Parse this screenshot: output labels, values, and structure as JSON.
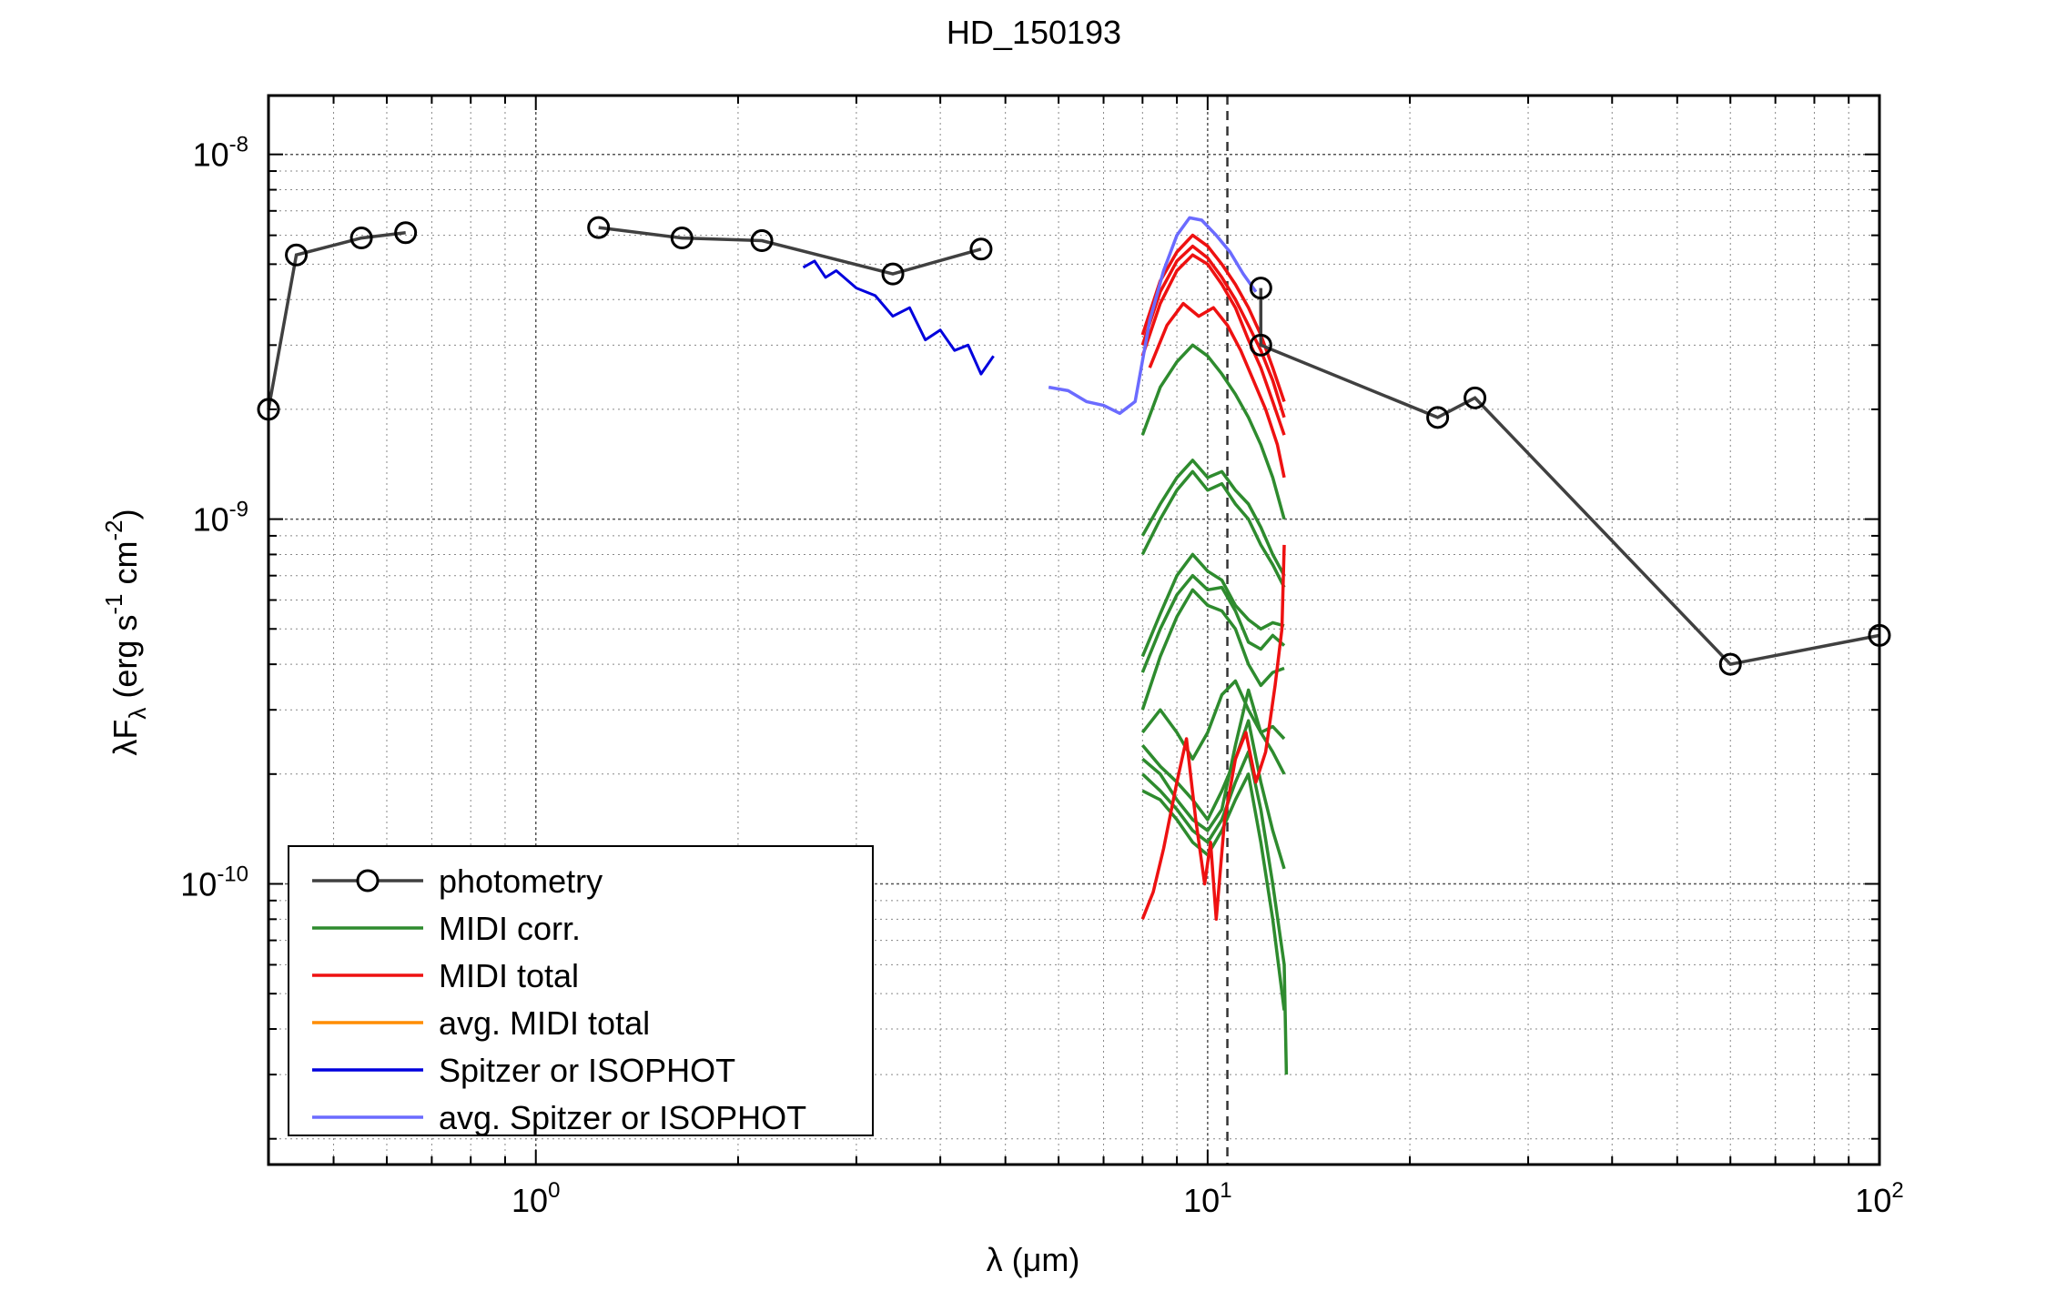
{
  "chart_data": {
    "type": "line",
    "title": "HD_150193",
    "xlabel": {
      "prefix": "λ (",
      "mu": "μ",
      "suffix": "m)"
    },
    "ylabel": {
      "base": "λF",
      "sub": "λ",
      "mid": " (erg s",
      "sup1": "-1",
      "mid2": " cm",
      "sup2": "-2",
      "end": ")"
    },
    "x_scale": "log",
    "y_scale": "log",
    "xlim": [
      0.4,
      100
    ],
    "ylim": [
      1.7e-11,
      1.45e-08
    ],
    "x_major_ticks": [
      {
        "base": "10",
        "exp": "0",
        "value": 1
      },
      {
        "base": "10",
        "exp": "1",
        "value": 10
      },
      {
        "base": "10",
        "exp": "2",
        "value": 100
      }
    ],
    "y_major_ticks": [
      {
        "base": "10",
        "exp": "-10",
        "value": 1e-10
      },
      {
        "base": "10",
        "exp": "-9",
        "value": 1e-09
      },
      {
        "base": "10",
        "exp": "-8",
        "value": 1e-08
      }
    ],
    "grid": true,
    "vertical_reference_line": 10.7,
    "legend_position": "bottom-left",
    "colors": {
      "photometry": "#404040",
      "midi_corr": "#2e8b2e",
      "midi_total": "#ee1111",
      "avg_midi_total": "#ff8c00",
      "spitzer": "#0000dd",
      "avg_spitzer": "#6b6bff"
    },
    "legend": [
      {
        "key": "photometry",
        "label": "photometry",
        "marker": true
      },
      {
        "key": "midi_corr",
        "label": "MIDI corr."
      },
      {
        "key": "midi_total",
        "label": "MIDI total"
      },
      {
        "key": "avg_midi_total",
        "label": "avg. MIDI total"
      },
      {
        "key": "spitzer",
        "label": "Spitzer or ISOPHOT"
      },
      {
        "key": "avg_spitzer",
        "label": "avg. Spitzer or ISOPHOT"
      }
    ],
    "photometry_segments": [
      [
        [
          0.4,
          2e-09
        ],
        [
          0.44,
          5.3e-09
        ],
        [
          0.55,
          5.9e-09
        ],
        [
          0.64,
          6.1e-09
        ]
      ],
      [
        [
          1.24,
          6.3e-09
        ],
        [
          1.65,
          5.9e-09
        ],
        [
          2.17,
          5.8e-09
        ],
        [
          3.4,
          4.7e-09
        ],
        [
          4.6,
          5.5e-09
        ]
      ],
      [
        [
          12,
          4.3e-09
        ],
        [
          12,
          3e-09
        ],
        [
          22,
          1.9e-09
        ],
        [
          25,
          2.15e-09
        ],
        [
          60,
          4e-10
        ],
        [
          100,
          4.8e-10
        ]
      ]
    ],
    "spitzer": [
      [
        2.5,
        4.9e-09
      ],
      [
        2.6,
        5.1e-09
      ],
      [
        2.7,
        4.6e-09
      ],
      [
        2.8,
        4.8e-09
      ],
      [
        3.0,
        4.3e-09
      ],
      [
        3.2,
        4.1e-09
      ],
      [
        3.4,
        3.6e-09
      ],
      [
        3.6,
        3.8e-09
      ],
      [
        3.8,
        3.1e-09
      ],
      [
        4.0,
        3.3e-09
      ],
      [
        4.2,
        2.9e-09
      ],
      [
        4.4,
        3e-09
      ],
      [
        4.6,
        2.5e-09
      ],
      [
        4.8,
        2.8e-09
      ]
    ],
    "avg_spitzer": [
      [
        5.8,
        2.3e-09
      ],
      [
        6.2,
        2.25e-09
      ],
      [
        6.6,
        2.1e-09
      ],
      [
        7.0,
        2.05e-09
      ],
      [
        7.4,
        1.95e-09
      ],
      [
        7.8,
        2.1e-09
      ],
      [
        8.2,
        3.5e-09
      ],
      [
        8.6,
        4.8e-09
      ],
      [
        9.0,
        6e-09
      ],
      [
        9.4,
        6.7e-09
      ],
      [
        9.8,
        6.6e-09
      ],
      [
        10.3,
        6e-09
      ],
      [
        10.8,
        5.4e-09
      ],
      [
        11.3,
        4.7e-09
      ],
      [
        11.8,
        4.2e-09
      ]
    ],
    "midi_total": [
      [
        [
          8.0,
          3.2e-09
        ],
        [
          8.5,
          4.5e-09
        ],
        [
          9.0,
          5.4e-09
        ],
        [
          9.5,
          6e-09
        ],
        [
          10.0,
          5.6e-09
        ],
        [
          10.5,
          5e-09
        ],
        [
          11.0,
          4.4e-09
        ],
        [
          11.5,
          3.8e-09
        ],
        [
          12.0,
          3.2e-09
        ],
        [
          12.5,
          2.6e-09
        ],
        [
          13.0,
          2.1e-09
        ]
      ],
      [
        [
          8.0,
          3e-09
        ],
        [
          8.5,
          4.2e-09
        ],
        [
          9.0,
          5.1e-09
        ],
        [
          9.5,
          5.6e-09
        ],
        [
          10.0,
          5.2e-09
        ],
        [
          10.5,
          4.6e-09
        ],
        [
          11.0,
          4e-09
        ],
        [
          11.5,
          3.4e-09
        ],
        [
          12.0,
          2.9e-09
        ],
        [
          12.5,
          2.4e-09
        ],
        [
          13.0,
          1.9e-09
        ]
      ],
      [
        [
          8.0,
          2.8e-09
        ],
        [
          8.5,
          3.9e-09
        ],
        [
          9.0,
          4.8e-09
        ],
        [
          9.5,
          5.3e-09
        ],
        [
          10.0,
          5e-09
        ],
        [
          10.5,
          4.4e-09
        ],
        [
          11.0,
          3.8e-09
        ],
        [
          11.5,
          3.1e-09
        ],
        [
          12.0,
          2.6e-09
        ],
        [
          12.5,
          2.1e-09
        ],
        [
          13.0,
          1.7e-09
        ]
      ],
      [
        [
          8.2,
          2.6e-09
        ],
        [
          8.7,
          3.4e-09
        ],
        [
          9.2,
          3.9e-09
        ],
        [
          9.7,
          3.6e-09
        ],
        [
          10.2,
          3.8e-09
        ],
        [
          10.7,
          3.4e-09
        ],
        [
          11.2,
          2.9e-09
        ],
        [
          11.7,
          2.4e-09
        ],
        [
          12.2,
          2e-09
        ],
        [
          12.7,
          1.6e-09
        ],
        [
          13.0,
          1.3e-09
        ]
      ],
      [
        [
          8.0,
          8e-11
        ],
        [
          8.3,
          9.5e-11
        ],
        [
          8.6,
          1.25e-10
        ],
        [
          9.0,
          1.9e-10
        ],
        [
          9.3,
          2.5e-10
        ],
        [
          9.6,
          1.5e-10
        ],
        [
          9.9,
          1e-10
        ],
        [
          10.1,
          1.3e-10
        ],
        [
          10.3,
          8e-11
        ],
        [
          10.6,
          1.5e-10
        ],
        [
          11.0,
          2.2e-10
        ],
        [
          11.4,
          2.6e-10
        ],
        [
          11.8,
          1.9e-10
        ],
        [
          12.2,
          2.3e-10
        ],
        [
          12.6,
          3.5e-10
        ],
        [
          12.9,
          5e-10
        ],
        [
          13.0,
          8.5e-10
        ]
      ]
    ],
    "midi_corr": [
      [
        [
          8.0,
          1.7e-09
        ],
        [
          8.5,
          2.3e-09
        ],
        [
          9.0,
          2.7e-09
        ],
        [
          9.5,
          3e-09
        ],
        [
          10.0,
          2.8e-09
        ],
        [
          10.5,
          2.5e-09
        ],
        [
          11.0,
          2.2e-09
        ],
        [
          11.5,
          1.9e-09
        ],
        [
          12.0,
          1.6e-09
        ],
        [
          12.5,
          1.3e-09
        ],
        [
          13.0,
          1e-09
        ]
      ],
      [
        [
          8.0,
          9e-10
        ],
        [
          8.5,
          1.1e-09
        ],
        [
          9.0,
          1.3e-09
        ],
        [
          9.5,
          1.45e-09
        ],
        [
          10.0,
          1.3e-09
        ],
        [
          10.5,
          1.35e-09
        ],
        [
          11.0,
          1.2e-09
        ],
        [
          11.5,
          1.1e-09
        ],
        [
          12.0,
          9.5e-10
        ],
        [
          12.5,
          8e-10
        ],
        [
          13.0,
          7e-10
        ]
      ],
      [
        [
          8.0,
          8e-10
        ],
        [
          8.5,
          1e-09
        ],
        [
          9.0,
          1.2e-09
        ],
        [
          9.5,
          1.35e-09
        ],
        [
          10.0,
          1.2e-09
        ],
        [
          10.5,
          1.25e-09
        ],
        [
          11.0,
          1.1e-09
        ],
        [
          11.5,
          1e-09
        ],
        [
          12.0,
          8.5e-10
        ],
        [
          12.5,
          7.5e-10
        ],
        [
          13.0,
          6.5e-10
        ]
      ],
      [
        [
          8.0,
          4.2e-10
        ],
        [
          8.5,
          5.5e-10
        ],
        [
          9.0,
          7e-10
        ],
        [
          9.5,
          8e-10
        ],
        [
          10.0,
          7.2e-10
        ],
        [
          10.5,
          6.8e-10
        ],
        [
          11.0,
          5.8e-10
        ],
        [
          11.5,
          5.3e-10
        ],
        [
          12.0,
          5e-10
        ],
        [
          12.5,
          5.2e-10
        ],
        [
          13.0,
          5.1e-10
        ]
      ],
      [
        [
          8.0,
          3.8e-10
        ],
        [
          8.5,
          5e-10
        ],
        [
          9.0,
          6.2e-10
        ],
        [
          9.5,
          7e-10
        ],
        [
          10.0,
          6.4e-10
        ],
        [
          10.5,
          6.5e-10
        ],
        [
          11.0,
          5.6e-10
        ],
        [
          11.5,
          4.6e-10
        ],
        [
          12.0,
          4.4e-10
        ],
        [
          12.5,
          4.8e-10
        ],
        [
          13.0,
          4.5e-10
        ]
      ],
      [
        [
          8.0,
          3e-10
        ],
        [
          8.5,
          4.2e-10
        ],
        [
          9.0,
          5.4e-10
        ],
        [
          9.5,
          6.4e-10
        ],
        [
          10.0,
          5.8e-10
        ],
        [
          10.5,
          5.6e-10
        ],
        [
          11.0,
          5e-10
        ],
        [
          11.5,
          4e-10
        ],
        [
          12.0,
          3.5e-10
        ],
        [
          12.5,
          3.8e-10
        ],
        [
          13.0,
          3.9e-10
        ]
      ],
      [
        [
          8.0,
          2.6e-10
        ],
        [
          8.5,
          3e-10
        ],
        [
          9.0,
          2.6e-10
        ],
        [
          9.5,
          2.2e-10
        ],
        [
          10.0,
          2.6e-10
        ],
        [
          10.5,
          3.3e-10
        ],
        [
          11.0,
          3.6e-10
        ],
        [
          11.5,
          3e-10
        ],
        [
          12.0,
          2.6e-10
        ],
        [
          12.5,
          2.7e-10
        ],
        [
          13.0,
          2.5e-10
        ]
      ],
      [
        [
          8.0,
          2.2e-10
        ],
        [
          8.5,
          2e-10
        ],
        [
          9.0,
          1.7e-10
        ],
        [
          9.5,
          1.5e-10
        ],
        [
          10.0,
          1.4e-10
        ],
        [
          10.5,
          1.6e-10
        ],
        [
          11.0,
          2.4e-10
        ],
        [
          11.5,
          3.4e-10
        ],
        [
          12.0,
          2.6e-10
        ],
        [
          12.5,
          2.3e-10
        ],
        [
          13.0,
          2e-10
        ]
      ],
      [
        [
          8.0,
          2.4e-10
        ],
        [
          8.5,
          2.1e-10
        ],
        [
          9.0,
          1.9e-10
        ],
        [
          9.5,
          1.7e-10
        ],
        [
          10.0,
          1.5e-10
        ],
        [
          10.5,
          1.8e-10
        ],
        [
          11.0,
          2.2e-10
        ],
        [
          11.5,
          2.8e-10
        ],
        [
          12.0,
          1.9e-10
        ],
        [
          12.5,
          1.4e-10
        ],
        [
          13.0,
          1.1e-10
        ]
      ],
      [
        [
          8.0,
          2e-10
        ],
        [
          8.5,
          1.8e-10
        ],
        [
          9.0,
          1.6e-10
        ],
        [
          9.5,
          1.4e-10
        ],
        [
          10.0,
          1.3e-10
        ],
        [
          10.5,
          1.5e-10
        ],
        [
          11.0,
          1.9e-10
        ],
        [
          11.5,
          2.3e-10
        ],
        [
          12.0,
          1.6e-10
        ],
        [
          12.5,
          1e-10
        ],
        [
          13.0,
          6e-11
        ],
        [
          13.1,
          3e-11
        ]
      ],
      [
        [
          8.0,
          1.8e-10
        ],
        [
          8.5,
          1.7e-10
        ],
        [
          9.0,
          1.5e-10
        ],
        [
          9.5,
          1.3e-10
        ],
        [
          10.0,
          1.2e-10
        ],
        [
          10.5,
          1.4e-10
        ],
        [
          11.0,
          1.7e-10
        ],
        [
          11.5,
          2e-10
        ],
        [
          12.0,
          1.3e-10
        ],
        [
          12.5,
          8e-11
        ],
        [
          13.0,
          4.5e-11
        ]
      ]
    ]
  }
}
